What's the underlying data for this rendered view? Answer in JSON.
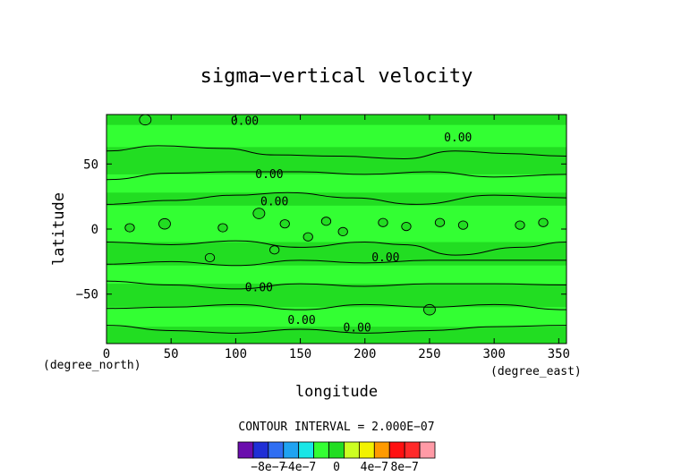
{
  "chart_data": {
    "type": "contour",
    "title": "sigma−vertical velocity",
    "xlabel": "longitude",
    "ylabel": "latitude",
    "x_units": "(degree_east)",
    "y_units": "(degree_north)",
    "xlim": [
      0,
      356
    ],
    "ylim": [
      -88,
      88
    ],
    "x_ticks": [
      0,
      50,
      100,
      150,
      200,
      250,
      300,
      350
    ],
    "y_ticks": [
      -50,
      0,
      50
    ],
    "contour_label": "0.00",
    "contour_interval_text": "CONTOUR INTERVAL = 2.000E−07",
    "colorbar": {
      "colors": [
        "#6a0dad",
        "#1f2fd6",
        "#2f6ef2",
        "#1fa3f2",
        "#19e6e6",
        "#33ff33",
        "#22dd22",
        "#ccff22",
        "#f2f200",
        "#ff9a00",
        "#ff1010",
        "#ff2a2a",
        "#ff9aa6"
      ],
      "tick_labels": [
        "−8e−7",
        "−4e−7",
        "0",
        "4e−7",
        "8e−7"
      ]
    },
    "field_colors": {
      "zero_band": "#33ff33",
      "slightly_positive": "#22dd22"
    },
    "bands": [
      {
        "y": [
          80,
          88
        ],
        "level": "slightly_positive"
      },
      {
        "y": [
          42,
          63
        ],
        "level": "slightly_positive"
      },
      {
        "y": [
          18,
          28
        ],
        "level": "slightly_positive"
      },
      {
        "y": [
          -28,
          -10
        ],
        "level": "slightly_positive"
      },
      {
        "y": [
          -60,
          -42
        ],
        "level": "slightly_positive"
      },
      {
        "y": [
          -88,
          -75
        ],
        "level": "slightly_positive"
      }
    ],
    "contour_lines": [
      {
        "label": "0.00",
        "points": [
          [
            0,
            60
          ],
          [
            40,
            64
          ],
          [
            90,
            62
          ],
          [
            130,
            57
          ],
          [
            180,
            56
          ],
          [
            230,
            54
          ],
          [
            270,
            60
          ],
          [
            310,
            58
          ],
          [
            356,
            56
          ]
        ]
      },
      {
        "label": "0.00",
        "points": [
          [
            0,
            38
          ],
          [
            50,
            43
          ],
          [
            100,
            44
          ],
          [
            150,
            44
          ],
          [
            200,
            42
          ],
          [
            250,
            44
          ],
          [
            300,
            40
          ],
          [
            356,
            42
          ]
        ]
      },
      {
        "label": "0.00",
        "points": [
          [
            0,
            19
          ],
          [
            50,
            22
          ],
          [
            100,
            26
          ],
          [
            140,
            28
          ],
          [
            190,
            24
          ],
          [
            240,
            19
          ],
          [
            300,
            26
          ],
          [
            356,
            24
          ]
        ]
      },
      {
        "label": "0.00",
        "points": [
          [
            0,
            -10
          ],
          [
            50,
            -12
          ],
          [
            100,
            -9
          ],
          [
            150,
            -14
          ],
          [
            200,
            -10
          ],
          [
            230,
            -12
          ],
          [
            270,
            -20
          ],
          [
            320,
            -14
          ],
          [
            356,
            -10
          ]
        ]
      },
      {
        "label": "0.00",
        "points": [
          [
            0,
            -27
          ],
          [
            50,
            -25
          ],
          [
            100,
            -28
          ],
          [
            150,
            -24
          ],
          [
            200,
            -26
          ],
          [
            250,
            -24
          ],
          [
            300,
            -24
          ],
          [
            356,
            -24
          ]
        ]
      },
      {
        "label": "0.00",
        "points": [
          [
            0,
            -40
          ],
          [
            50,
            -43
          ],
          [
            100,
            -46
          ],
          [
            150,
            -42
          ],
          [
            200,
            -44
          ],
          [
            250,
            -42
          ],
          [
            300,
            -42
          ],
          [
            356,
            -43
          ]
        ]
      },
      {
        "label": "0.00",
        "points": [
          [
            0,
            -61
          ],
          [
            50,
            -60
          ],
          [
            100,
            -58
          ],
          [
            150,
            -62
          ],
          [
            200,
            -58
          ],
          [
            250,
            -60
          ],
          [
            300,
            -58
          ],
          [
            356,
            -62
          ]
        ]
      },
      {
        "label": "0.00",
        "points": [
          [
            0,
            -74
          ],
          [
            50,
            -78
          ],
          [
            100,
            -80
          ],
          [
            150,
            -77
          ],
          [
            200,
            -80
          ],
          [
            250,
            -78
          ],
          [
            300,
            -75
          ],
          [
            356,
            -74
          ]
        ]
      }
    ],
    "contour_labels": [
      {
        "text": "0.00",
        "x": 107,
        "y": 83
      },
      {
        "text": "0.00",
        "x": 272,
        "y": 70
      },
      {
        "text": "0.00",
        "x": 126,
        "y": 42
      },
      {
        "text": "0.00",
        "x": 130,
        "y": 21
      },
      {
        "text": "0.00",
        "x": 216,
        "y": -22
      },
      {
        "text": "0.00",
        "x": 118,
        "y": -45
      },
      {
        "text": "0.00",
        "x": 151,
        "y": -70
      },
      {
        "text": "0.00",
        "x": 194,
        "y": -76
      }
    ],
    "blobs": [
      {
        "x": 18,
        "y": 1,
        "r": 4
      },
      {
        "x": 45,
        "y": 4,
        "r": 5
      },
      {
        "x": 90,
        "y": 1,
        "r": 4
      },
      {
        "x": 118,
        "y": 12,
        "r": 5
      },
      {
        "x": 138,
        "y": 4,
        "r": 4
      },
      {
        "x": 156,
        "y": -6,
        "r": 4
      },
      {
        "x": 170,
        "y": 6,
        "r": 4
      },
      {
        "x": 183,
        "y": -2,
        "r": 4
      },
      {
        "x": 214,
        "y": 5,
        "r": 4
      },
      {
        "x": 232,
        "y": 2,
        "r": 4
      },
      {
        "x": 258,
        "y": 5,
        "r": 4
      },
      {
        "x": 276,
        "y": 3,
        "r": 4
      },
      {
        "x": 320,
        "y": 3,
        "r": 4
      },
      {
        "x": 338,
        "y": 5,
        "r": 4
      },
      {
        "x": 130,
        "y": -16,
        "r": 4
      },
      {
        "x": 80,
        "y": -22,
        "r": 4
      },
      {
        "x": 250,
        "y": -62,
        "r": 5
      },
      {
        "x": 30,
        "y": 84,
        "r": 5
      }
    ]
  }
}
